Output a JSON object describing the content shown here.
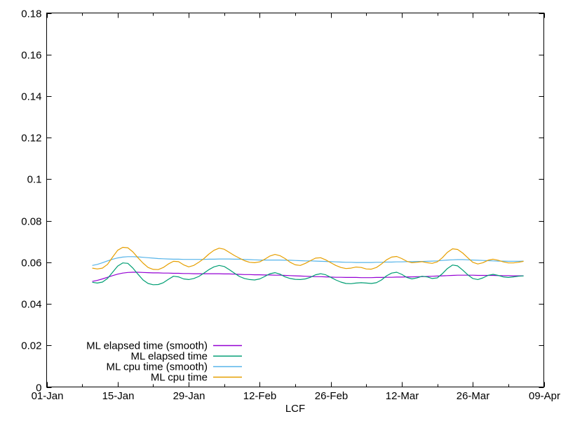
{
  "background_color": "#ffffff",
  "chart_data": {
    "type": "line",
    "title": "",
    "xlabel": "LCF",
    "ylabel": "",
    "grid": false,
    "legend": {
      "position": "inside-bottom-left",
      "entries": [
        "ML elapsed time (smooth)",
        "ML elapsed time",
        "ML cpu time (smooth)",
        "ML cpu time"
      ]
    },
    "x_axis": {
      "unit": "days since 01-Jan",
      "range_days": [
        0,
        98
      ],
      "tick_days": [
        0,
        14,
        28,
        42,
        56,
        70,
        84,
        98
      ],
      "tick_labels": [
        "01-Jan",
        "15-Jan",
        "29-Jan",
        "12-Feb",
        "26-Feb",
        "12-Mar",
        "26-Mar",
        "09-Apr"
      ],
      "minor_tick_days": [
        7,
        21,
        35,
        49,
        63,
        77,
        91
      ]
    },
    "y_axis": {
      "range": [
        0,
        0.18
      ],
      "ticks": [
        0,
        0.02,
        0.04,
        0.06,
        0.08,
        0.1,
        0.12,
        0.14,
        0.16,
        0.18
      ],
      "tick_labels": [
        "0",
        "0.02",
        "0.04",
        "0.06",
        "0.08",
        "0.1",
        "0.12",
        "0.14",
        "0.16",
        "0.18"
      ]
    },
    "series_x_start_day": 9,
    "series_x_step_days": 1,
    "series": [
      {
        "name": "ML elapsed time (smooth)",
        "color": "#9400D3",
        "values": [
          0.0508,
          0.0513,
          0.052,
          0.0528,
          0.0536,
          0.0543,
          0.0548,
          0.0551,
          0.0552,
          0.0552,
          0.0551,
          0.055,
          0.0549,
          0.0549,
          0.0548,
          0.0548,
          0.0547,
          0.0547,
          0.0546,
          0.0546,
          0.0545,
          0.0545,
          0.0545,
          0.0545,
          0.0545,
          0.0545,
          0.0544,
          0.0544,
          0.0543,
          0.0542,
          0.0541,
          0.0541,
          0.054,
          0.054,
          0.0539,
          0.0539,
          0.0538,
          0.0538,
          0.0537,
          0.0536,
          0.0535,
          0.0534,
          0.0533,
          0.0532,
          0.0531,
          0.0531,
          0.053,
          0.0529,
          0.0528,
          0.0528,
          0.0527,
          0.0527,
          0.0527,
          0.0526,
          0.0526,
          0.0526,
          0.0527,
          0.0527,
          0.0528,
          0.0528,
          0.0529,
          0.0529,
          0.053,
          0.053,
          0.0531,
          0.0531,
          0.0532,
          0.0533,
          0.0534,
          0.0535,
          0.0536,
          0.0537,
          0.0538,
          0.0538,
          0.0538,
          0.0538,
          0.0537,
          0.0537,
          0.0537,
          0.0537,
          0.0536,
          0.0536,
          0.0536,
          0.0535,
          0.0535,
          0.0535
        ]
      },
      {
        "name": "ML elapsed time",
        "color": "#009E73",
        "values": [
          0.0504,
          0.05,
          0.0505,
          0.0522,
          0.0552,
          0.0582,
          0.0597,
          0.0595,
          0.0572,
          0.0543,
          0.0515,
          0.0498,
          0.0492,
          0.0493,
          0.0502,
          0.0518,
          0.0533,
          0.053,
          0.052,
          0.0517,
          0.0522,
          0.0532,
          0.0548,
          0.0565,
          0.0578,
          0.0585,
          0.058,
          0.0565,
          0.0548,
          0.0532,
          0.0522,
          0.0517,
          0.0515,
          0.052,
          0.0532,
          0.0545,
          0.055,
          0.0543,
          0.053,
          0.0522,
          0.0518,
          0.0517,
          0.052,
          0.0528,
          0.054,
          0.0545,
          0.054,
          0.0528,
          0.0515,
          0.0505,
          0.0498,
          0.0497,
          0.05,
          0.0502,
          0.05,
          0.0498,
          0.0502,
          0.0515,
          0.0535,
          0.0548,
          0.0552,
          0.0542,
          0.0527,
          0.052,
          0.0525,
          0.0533,
          0.053,
          0.0522,
          0.0525,
          0.0545,
          0.057,
          0.0587,
          0.0583,
          0.0563,
          0.054,
          0.0522,
          0.0517,
          0.0525,
          0.0537,
          0.0542,
          0.0537,
          0.053,
          0.0527,
          0.053,
          0.0533,
          0.0535
        ]
      },
      {
        "name": "ML cpu time (smooth)",
        "color": "#56B4E9",
        "values": [
          0.0585,
          0.059,
          0.0598,
          0.0607,
          0.0615,
          0.0621,
          0.0625,
          0.0627,
          0.0627,
          0.0626,
          0.0624,
          0.0622,
          0.062,
          0.0618,
          0.0617,
          0.0616,
          0.0615,
          0.0615,
          0.0614,
          0.0614,
          0.0614,
          0.0614,
          0.0614,
          0.0615,
          0.0615,
          0.0616,
          0.0616,
          0.0616,
          0.0615,
          0.0615,
          0.0614,
          0.0613,
          0.0612,
          0.0611,
          0.0611,
          0.0611,
          0.0611,
          0.0611,
          0.061,
          0.061,
          0.0609,
          0.0608,
          0.0607,
          0.0607,
          0.0606,
          0.0605,
          0.0604,
          0.0603,
          0.0602,
          0.0601,
          0.06,
          0.06,
          0.0599,
          0.0599,
          0.0599,
          0.0599,
          0.06,
          0.06,
          0.0601,
          0.0601,
          0.0602,
          0.0602,
          0.0603,
          0.0603,
          0.0604,
          0.0604,
          0.0605,
          0.0606,
          0.0607,
          0.0609,
          0.0611,
          0.0612,
          0.0613,
          0.0613,
          0.0612,
          0.0611,
          0.061,
          0.0609,
          0.0608,
          0.0607,
          0.0606,
          0.0606,
          0.0605,
          0.0605,
          0.0605,
          0.0606
        ]
      },
      {
        "name": "ML cpu time",
        "color": "#E69F00",
        "values": [
          0.0572,
          0.0568,
          0.0572,
          0.059,
          0.0625,
          0.0658,
          0.0672,
          0.067,
          0.065,
          0.0622,
          0.0596,
          0.0575,
          0.0566,
          0.0565,
          0.0575,
          0.0592,
          0.0605,
          0.0603,
          0.0588,
          0.0578,
          0.0585,
          0.06,
          0.0618,
          0.064,
          0.0658,
          0.0668,
          0.0663,
          0.0648,
          0.0633,
          0.062,
          0.0608,
          0.06,
          0.0598,
          0.0602,
          0.0615,
          0.063,
          0.0638,
          0.0632,
          0.0618,
          0.06,
          0.0588,
          0.0585,
          0.0595,
          0.0608,
          0.062,
          0.0622,
          0.0612,
          0.0598,
          0.0585,
          0.0575,
          0.057,
          0.0572,
          0.0577,
          0.0575,
          0.0568,
          0.0567,
          0.0575,
          0.0592,
          0.0612,
          0.0625,
          0.0628,
          0.0618,
          0.0605,
          0.0598,
          0.06,
          0.0603,
          0.0598,
          0.0595,
          0.0602,
          0.0622,
          0.0648,
          0.0665,
          0.0662,
          0.0645,
          0.0622,
          0.06,
          0.0592,
          0.0598,
          0.061,
          0.0615,
          0.061,
          0.0602,
          0.0597,
          0.0597,
          0.06,
          0.0605
        ]
      }
    ]
  }
}
